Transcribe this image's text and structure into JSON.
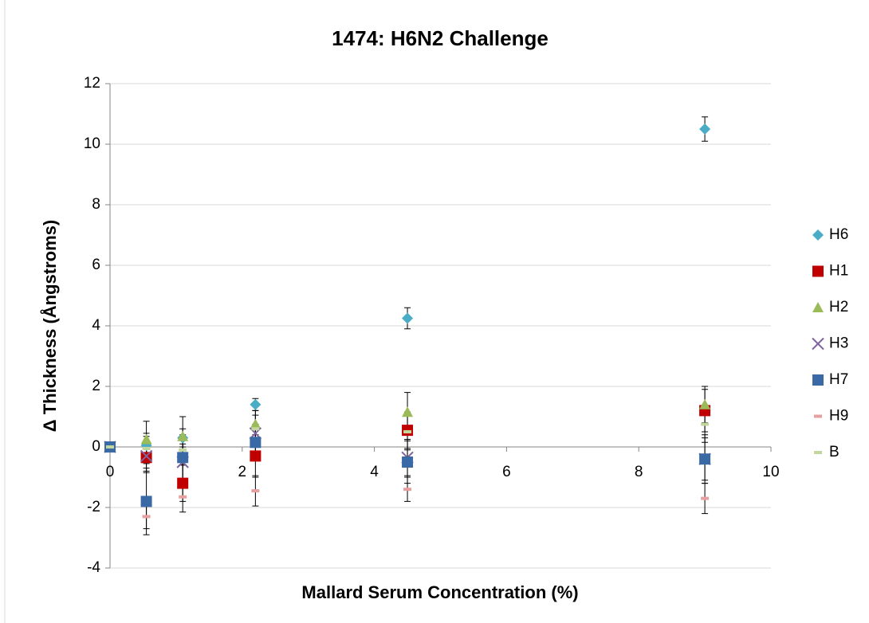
{
  "chart_data": {
    "type": "scatter",
    "title": "1474: H6N2 Challenge",
    "x_label": "Mallard Serum Concentration (%)",
    "y_label": "Δ Thickness (Ångstroms)",
    "xlim": [
      0,
      10
    ],
    "xticks": [
      0,
      2,
      4,
      6,
      8,
      10
    ],
    "ylim": [
      -4,
      12
    ],
    "yticks": [
      -4,
      -2,
      0,
      2,
      4,
      6,
      8,
      10,
      12
    ],
    "grid": true,
    "legend": "right",
    "x": [
      0,
      0.55,
      1.1,
      2.2,
      4.5,
      9
    ],
    "series": [
      {
        "name": "H6",
        "color": "#4bacc6",
        "marker": "diamond",
        "values": [
          0,
          0.05,
          0.3,
          1.4,
          4.25,
          10.5
        ],
        "errors": [
          0,
          0.3,
          0.3,
          0.2,
          0.35,
          0.4
        ]
      },
      {
        "name": "H1",
        "color": "#c00000",
        "marker": "square",
        "values": [
          0,
          -0.35,
          -1.2,
          -0.3,
          0.55,
          1.2
        ],
        "errors": [
          0,
          0.5,
          0.6,
          0.7,
          0.6,
          0.7
        ]
      },
      {
        "name": "H2",
        "color": "#9bbb59",
        "marker": "triangle",
        "values": [
          0,
          0.25,
          0.35,
          0.75,
          1.15,
          1.4
        ],
        "errors": [
          0,
          0.6,
          0.65,
          0.7,
          0.65,
          0.6
        ]
      },
      {
        "name": "H3",
        "color": "#8064a2",
        "marker": "x",
        "values": [
          0,
          -0.3,
          -0.5,
          0.45,
          -0.35,
          -0.4
        ],
        "errors": [
          0,
          0.5,
          0.6,
          0.6,
          0.6,
          0.7
        ]
      },
      {
        "name": "H7",
        "color": "#3a6aa5",
        "marker": "square",
        "values": [
          0,
          -1.8,
          -0.35,
          0.15,
          -0.5,
          -0.4
        ],
        "errors": [
          0,
          1.1,
          0.7,
          0.6,
          0.7,
          0.8
        ]
      },
      {
        "name": "H9",
        "color": "#e6a0a0",
        "marker": "dash",
        "values": [
          0,
          -2.3,
          -1.65,
          -1.45,
          -1.4,
          -1.7
        ],
        "errors": [
          0,
          0.4,
          0.5,
          0.5,
          0.4,
          0.5
        ]
      },
      {
        "name": "B",
        "color": "#c3d69b",
        "marker": "dash",
        "values": [
          0,
          -0.05,
          -0.1,
          0.6,
          0.5,
          0.75
        ],
        "errors": [
          0,
          0.5,
          0.5,
          0.6,
          0.6,
          0.6
        ]
      }
    ]
  }
}
